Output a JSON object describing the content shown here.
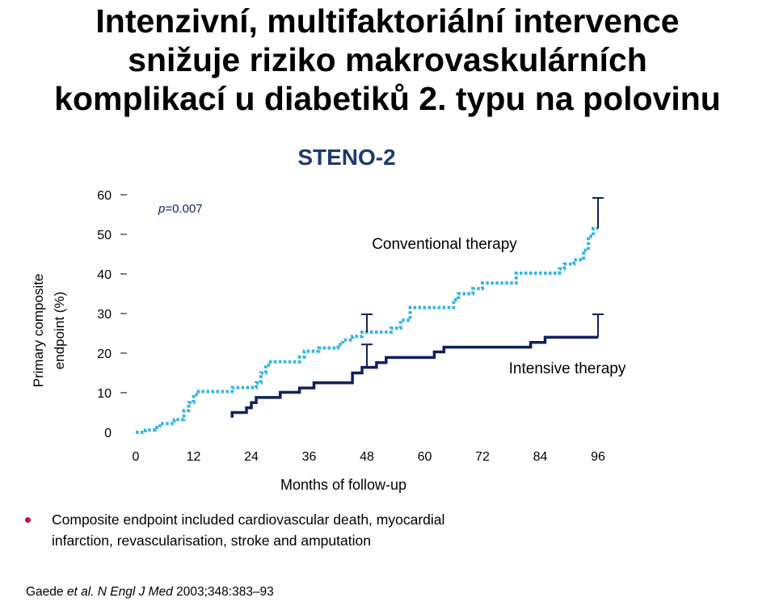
{
  "title": {
    "line1": "Intenzivní, multifaktoriální intervence",
    "line2": "snižuje riziko makrovaskulárních",
    "line3": "komplikací u diabetiků 2. typu na polovinu"
  },
  "bullet": {
    "line1": "Composite endpoint included cardiovascular death, myocardial",
    "line2": "infarction, revascularisation, stroke and amputation"
  },
  "citation": {
    "authors": "Gaede ",
    "etal": "et al.",
    "journal": " N Engl J Med ",
    "ref": "2003;348:383–93"
  },
  "colors": {
    "conventional": "#33b5e5",
    "intensive": "#10205e",
    "bullet": "#c0143c"
  },
  "chart_data": {
    "type": "line",
    "title": "STENO-2",
    "xlabel": "Months of follow-up",
    "ylabel_line1": "Primary composite",
    "ylabel_line2": "endpoint (%)",
    "xlim": [
      0,
      96
    ],
    "ylim": [
      0,
      60
    ],
    "xticks": [
      0,
      12,
      24,
      36,
      48,
      60,
      72,
      84,
      96
    ],
    "yticks": [
      0,
      10,
      20,
      30,
      40,
      50,
      60
    ],
    "grid": false,
    "pvalue_prefix": "p",
    "pvalue_rest": "=0.007",
    "series": [
      {
        "name": "Conventional therapy",
        "style": "dotted",
        "points": [
          [
            0,
            0
          ],
          [
            2,
            0
          ],
          [
            2,
            0.6
          ],
          [
            4,
            0.6
          ],
          [
            4,
            1.2
          ],
          [
            5,
            1.2
          ],
          [
            5,
            2.2
          ],
          [
            8,
            2.2
          ],
          [
            8,
            3.2
          ],
          [
            10,
            3.2
          ],
          [
            10,
            5.5
          ],
          [
            11,
            5.5
          ],
          [
            11,
            7.5
          ],
          [
            12,
            7.5
          ],
          [
            12,
            9.5
          ],
          [
            13,
            9.5
          ],
          [
            13,
            10.3
          ],
          [
            20,
            10.3
          ],
          [
            20,
            11.3
          ],
          [
            25,
            11.3
          ],
          [
            25,
            12.5
          ],
          [
            26,
            12.5
          ],
          [
            26,
            15
          ],
          [
            27,
            15
          ],
          [
            27,
            17
          ],
          [
            28,
            17
          ],
          [
            28,
            17.8
          ],
          [
            34,
            17.8
          ],
          [
            34,
            19
          ],
          [
            35,
            19
          ],
          [
            35,
            20.5
          ],
          [
            38,
            20.5
          ],
          [
            38,
            21.3
          ],
          [
            42,
            21.3
          ],
          [
            42,
            22.2
          ],
          [
            43,
            22.2
          ],
          [
            43,
            23.3
          ],
          [
            45,
            23.3
          ],
          [
            45,
            24.2
          ],
          [
            47,
            24.2
          ],
          [
            47,
            25.3
          ],
          [
            53,
            25.3
          ],
          [
            53,
            26.3
          ],
          [
            55,
            26.3
          ],
          [
            55,
            28.3
          ],
          [
            57,
            28.3
          ],
          [
            57,
            31.5
          ],
          [
            66,
            31.5
          ],
          [
            66,
            33.5
          ],
          [
            67,
            33.5
          ],
          [
            67,
            35
          ],
          [
            70,
            35
          ],
          [
            70,
            36.3
          ],
          [
            72,
            36.3
          ],
          [
            72,
            37.7
          ],
          [
            79,
            37.7
          ],
          [
            79,
            40.2
          ],
          [
            88,
            40.2
          ],
          [
            88,
            41.3
          ],
          [
            89,
            41.3
          ],
          [
            89,
            42.5
          ],
          [
            91,
            42.5
          ],
          [
            91,
            43.6
          ],
          [
            93,
            43.6
          ],
          [
            93,
            46
          ],
          [
            94,
            46
          ],
          [
            94,
            49.5
          ],
          [
            95,
            49.5
          ],
          [
            95,
            51.5
          ],
          [
            96,
            51.5
          ]
        ],
        "end_ci": [
          51.5,
          59.2
        ],
        "mid_ci_x": 48,
        "mid_ci": [
          25.3,
          29.8
        ]
      },
      {
        "name": "Intensive therapy",
        "style": "solid",
        "points": [
          [
            20,
            3.7
          ],
          [
            20,
            5
          ],
          [
            23,
            5
          ],
          [
            23,
            6.2
          ],
          [
            24,
            6.2
          ],
          [
            24,
            7.5
          ],
          [
            25,
            7.5
          ],
          [
            25,
            8.8
          ],
          [
            30,
            8.8
          ],
          [
            30,
            10.1
          ],
          [
            34,
            10.1
          ],
          [
            34,
            11.2
          ],
          [
            37,
            11.2
          ],
          [
            37,
            12.5
          ],
          [
            45,
            12.5
          ],
          [
            45,
            15
          ],
          [
            47,
            15
          ],
          [
            47,
            16.4
          ],
          [
            50,
            16.4
          ],
          [
            50,
            17.6
          ],
          [
            52,
            17.6
          ],
          [
            52,
            18.9
          ],
          [
            62,
            18.9
          ],
          [
            62,
            20.3
          ],
          [
            64,
            20.3
          ],
          [
            64,
            21.5
          ],
          [
            82,
            21.5
          ],
          [
            82,
            22.7
          ],
          [
            85,
            22.7
          ],
          [
            85,
            24
          ],
          [
            96,
            24
          ]
        ],
        "end_ci": [
          24,
          29.8
        ],
        "mid_ci_x": 48,
        "mid_ci": [
          16.4,
          22.2
        ]
      }
    ]
  }
}
